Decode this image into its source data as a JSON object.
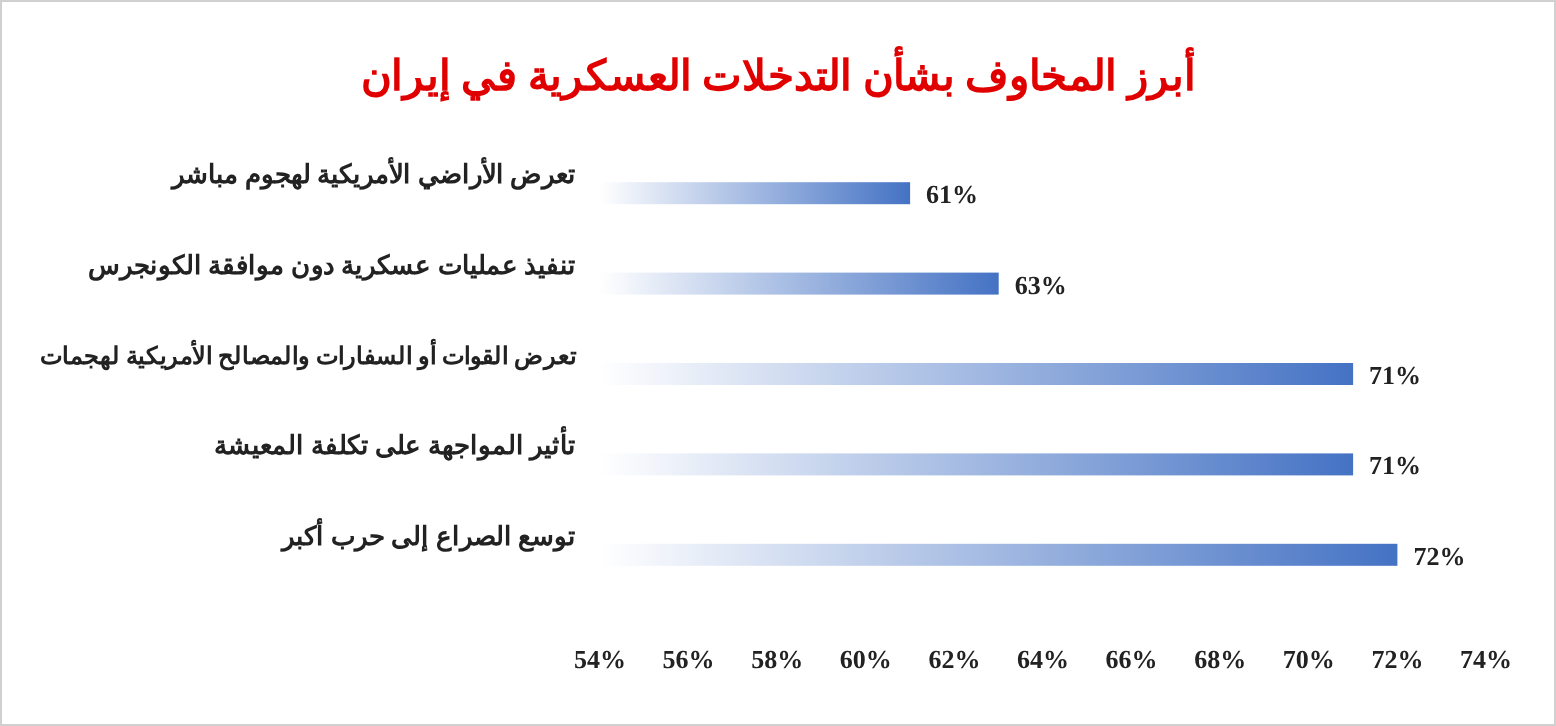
{
  "chart_data": {
    "type": "bar",
    "orientation": "horizontal",
    "title": "أبرز المخاوف بشأن التدخلات العسكرية في إيران",
    "categories": [
      "تعرض الأراضي الأمريكية لهجوم مباشر",
      "تنفيذ عمليات عسكرية دون موافقة الكونجرس",
      "تعرض القوات أو السفارات والمصالح الأمريكية لهجمات",
      "تأثير المواجهة على تكلفة المعيشة",
      "توسع الصراع إلى حرب أكبر"
    ],
    "values": [
      61,
      63,
      71,
      71,
      72
    ],
    "value_labels": [
      "61%",
      "63%",
      "71%",
      "71%",
      "72%"
    ],
    "color": "#4472c4",
    "xlim": [
      54,
      74
    ],
    "xticks": [
      {
        "value": 54,
        "label": "54%"
      },
      {
        "value": 56,
        "label": "56%"
      },
      {
        "value": 58,
        "label": "58%"
      },
      {
        "value": 60,
        "label": "60%"
      },
      {
        "value": 62,
        "label": "62%"
      },
      {
        "value": 64,
        "label": "64%"
      },
      {
        "value": 66,
        "label": "66%"
      },
      {
        "value": 68,
        "label": "68%"
      },
      {
        "value": 70,
        "label": "70%"
      },
      {
        "value": 72,
        "label": "72%"
      },
      {
        "value": 74,
        "label": "74%"
      }
    ],
    "grid": false
  }
}
